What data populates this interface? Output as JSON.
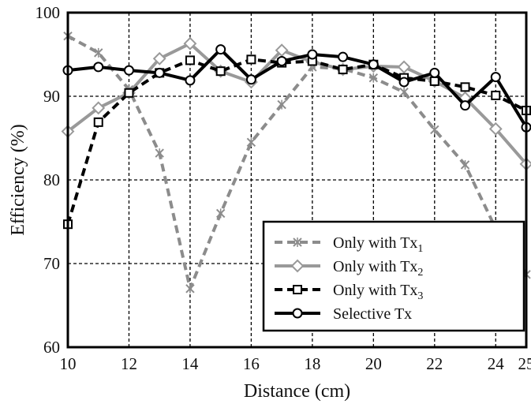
{
  "chart_data": {
    "type": "line",
    "xlabel": "Distance (cm)",
    "ylabel": "Efficiency (%)",
    "xlim": [
      10,
      25
    ],
    "ylim": [
      60,
      100
    ],
    "xticks": [
      10,
      12,
      14,
      16,
      18,
      20,
      22,
      24,
      25
    ],
    "yticks": [
      60,
      70,
      80,
      90,
      100
    ],
    "grid": true,
    "legend_position": "bottom-right",
    "x": [
      10,
      11,
      12,
      13,
      14,
      15,
      16,
      17,
      18,
      19,
      20,
      21,
      22,
      23,
      24,
      25
    ],
    "series": [
      {
        "name": "Only with Tx",
        "subscript": "1",
        "color": "#8c8c8c",
        "dash": "dashed",
        "marker": "x",
        "values": [
          97.2,
          95.2,
          90.8,
          83.2,
          67.0,
          76.0,
          84.5,
          89.0,
          93.5,
          93.3,
          92.2,
          90.5,
          86.0,
          81.8,
          74.2,
          68.7
        ]
      },
      {
        "name": "Only with Tx",
        "subscript": "2",
        "color": "#999999",
        "dash": "solid",
        "marker": "diamond",
        "values": [
          85.8,
          88.6,
          90.4,
          94.5,
          96.3,
          93.0,
          91.7,
          95.5,
          94.1,
          93.2,
          93.6,
          93.5,
          91.8,
          89.8,
          86.1,
          81.9
        ]
      },
      {
        "name": "Only with Tx",
        "subscript": "3",
        "color": "#000000",
        "dash": "dashed",
        "marker": "square",
        "values": [
          74.7,
          86.9,
          90.4,
          92.8,
          94.3,
          93.0,
          94.4,
          94.0,
          94.2,
          93.2,
          93.8,
          92.2,
          91.8,
          91.1,
          90.1,
          88.3
        ]
      },
      {
        "name": "Selective Tx",
        "subscript": "",
        "color": "#000000",
        "dash": "solid",
        "marker": "circle",
        "values": [
          93.1,
          93.5,
          93.1,
          92.8,
          91.9,
          95.6,
          92.0,
          94.2,
          95.0,
          94.7,
          93.8,
          91.7,
          92.8,
          88.9,
          92.3,
          86.3
        ]
      }
    ]
  }
}
